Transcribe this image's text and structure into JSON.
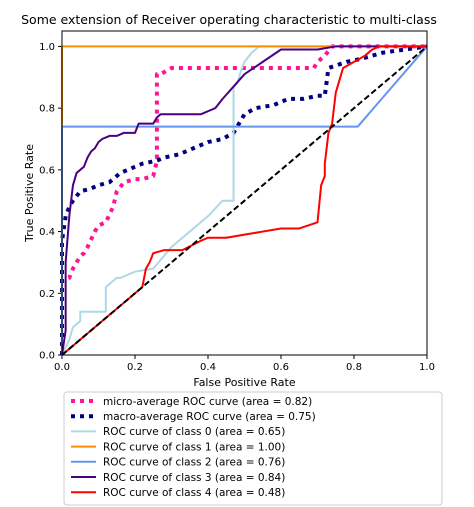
{
  "chart_data": {
    "type": "line",
    "title": "Some extension of Receiver operating characteristic to multi-class",
    "xlabel": "False Positive Rate",
    "ylabel": "True Positive Rate",
    "xlim": [
      0.0,
      1.0
    ],
    "ylim": [
      0.0,
      1.05
    ],
    "xticks": [
      "0.0",
      "0.2",
      "0.4",
      "0.6",
      "0.8",
      "1.0"
    ],
    "yticks": [
      "0.0",
      "0.2",
      "0.4",
      "0.6",
      "0.8",
      "1.0"
    ],
    "grid": false,
    "legend_position": "below",
    "series": [
      {
        "name": "micro-average ROC curve (area = 0.82)",
        "color": "#ff1493",
        "style": "dotted",
        "x": [
          0.0,
          0.0,
          0.02,
          0.03,
          0.05,
          0.06,
          0.07,
          0.09,
          0.1,
          0.12,
          0.14,
          0.15,
          0.17,
          0.2,
          0.22,
          0.25,
          0.26,
          0.26,
          0.27,
          0.3,
          0.35,
          0.4,
          0.45,
          0.5,
          0.55,
          0.6,
          0.65,
          0.69,
          0.7,
          0.72,
          0.74,
          0.76,
          0.8,
          1.0
        ],
        "y": [
          0.0,
          0.24,
          0.25,
          0.28,
          0.32,
          0.33,
          0.35,
          0.4,
          0.42,
          0.43,
          0.48,
          0.53,
          0.56,
          0.57,
          0.57,
          0.58,
          0.63,
          0.91,
          0.91,
          0.93,
          0.93,
          0.93,
          0.93,
          0.93,
          0.93,
          0.93,
          0.93,
          0.93,
          0.95,
          0.97,
          1.0,
          1.0,
          1.0,
          1.0
        ]
      },
      {
        "name": "macro-average ROC curve (area = 0.75)",
        "color": "#000080",
        "style": "dotted",
        "x": [
          0.0,
          0.0,
          0.01,
          0.02,
          0.03,
          0.05,
          0.08,
          0.1,
          0.13,
          0.15,
          0.16,
          0.18,
          0.22,
          0.26,
          0.28,
          0.32,
          0.36,
          0.4,
          0.44,
          0.47,
          0.5,
          0.53,
          0.58,
          0.62,
          0.66,
          0.7,
          0.72,
          0.73,
          0.78,
          0.82,
          0.88,
          0.94,
          1.0
        ],
        "y": [
          0.0,
          0.37,
          0.45,
          0.48,
          0.5,
          0.53,
          0.54,
          0.55,
          0.56,
          0.58,
          0.59,
          0.6,
          0.62,
          0.63,
          0.64,
          0.65,
          0.67,
          0.69,
          0.7,
          0.72,
          0.78,
          0.8,
          0.81,
          0.83,
          0.83,
          0.84,
          0.84,
          0.93,
          0.95,
          0.96,
          0.98,
          0.99,
          1.0
        ]
      },
      {
        "name": "ROC curve of class 0 (area = 0.65)",
        "color": "#add8e6",
        "style": "solid",
        "x": [
          0.0,
          0.02,
          0.03,
          0.05,
          0.05,
          0.09,
          0.12,
          0.12,
          0.15,
          0.16,
          0.2,
          0.25,
          0.3,
          0.35,
          0.4,
          0.44,
          0.47,
          0.47,
          0.48,
          0.49,
          0.5,
          0.52,
          0.54,
          0.56,
          0.7,
          0.76,
          0.8,
          0.9,
          1.0
        ],
        "y": [
          0.0,
          0.05,
          0.09,
          0.11,
          0.14,
          0.14,
          0.14,
          0.22,
          0.25,
          0.25,
          0.27,
          0.28,
          0.35,
          0.4,
          0.45,
          0.5,
          0.5,
          0.87,
          0.88,
          0.92,
          0.95,
          0.98,
          1.0,
          1.0,
          1.0,
          1.0,
          1.0,
          1.0,
          1.0
        ]
      },
      {
        "name": "ROC curve of class 1 (area = 1.00)",
        "color": "#ff8c00",
        "style": "solid",
        "x": [
          0.0,
          0.0,
          0.2,
          0.4,
          0.6,
          0.8,
          1.0
        ],
        "y": [
          0.0,
          1.0,
          1.0,
          1.0,
          1.0,
          1.0,
          1.0
        ]
      },
      {
        "name": "ROC curve of class 2 (area = 0.76)",
        "color": "#6495ed",
        "style": "solid",
        "x": [
          0.0,
          0.0,
          0.3,
          0.6,
          0.81,
          1.0
        ],
        "y": [
          0.0,
          0.74,
          0.74,
          0.74,
          0.74,
          1.0
        ]
      },
      {
        "name": "ROC curve of class 3 (area = 0.84)",
        "color": "#4b0082",
        "style": "solid",
        "x": [
          0.0,
          0.01,
          0.01,
          0.02,
          0.03,
          0.04,
          0.06,
          0.07,
          0.08,
          0.09,
          0.1,
          0.11,
          0.13,
          0.15,
          0.17,
          0.2,
          0.21,
          0.25,
          0.26,
          0.27,
          0.32,
          0.38,
          0.42,
          0.44,
          0.47,
          0.5,
          0.55,
          0.6,
          0.63,
          0.7,
          0.75,
          0.8,
          0.9,
          1.0
        ],
        "y": [
          0.0,
          0.08,
          0.3,
          0.45,
          0.55,
          0.59,
          0.61,
          0.64,
          0.66,
          0.67,
          0.69,
          0.7,
          0.71,
          0.71,
          0.72,
          0.72,
          0.75,
          0.75,
          0.77,
          0.78,
          0.78,
          0.78,
          0.8,
          0.83,
          0.87,
          0.91,
          0.95,
          0.99,
          0.99,
          0.99,
          1.0,
          1.0,
          1.0,
          1.0
        ]
      },
      {
        "name": "ROC curve of class 4 (area = 0.48)",
        "color": "#ff0000",
        "style": "solid",
        "x": [
          0.0,
          0.06,
          0.12,
          0.18,
          0.22,
          0.23,
          0.24,
          0.25,
          0.28,
          0.33,
          0.38,
          0.4,
          0.45,
          0.5,
          0.55,
          0.6,
          0.65,
          0.7,
          0.71,
          0.72,
          0.72,
          0.73,
          0.74,
          0.75,
          0.77,
          0.8,
          0.83,
          0.85,
          0.87,
          0.9,
          0.95,
          1.0
        ],
        "y": [
          0.0,
          0.06,
          0.12,
          0.18,
          0.22,
          0.28,
          0.3,
          0.33,
          0.34,
          0.34,
          0.37,
          0.38,
          0.38,
          0.39,
          0.4,
          0.41,
          0.41,
          0.43,
          0.55,
          0.58,
          0.62,
          0.72,
          0.75,
          0.85,
          0.93,
          0.95,
          0.97,
          0.99,
          1.0,
          1.0,
          1.0,
          1.0
        ]
      },
      {
        "name": "",
        "color": "#000000",
        "style": "dashed",
        "x": [
          0.0,
          1.0
        ],
        "y": [
          0.0,
          1.0
        ]
      }
    ]
  }
}
